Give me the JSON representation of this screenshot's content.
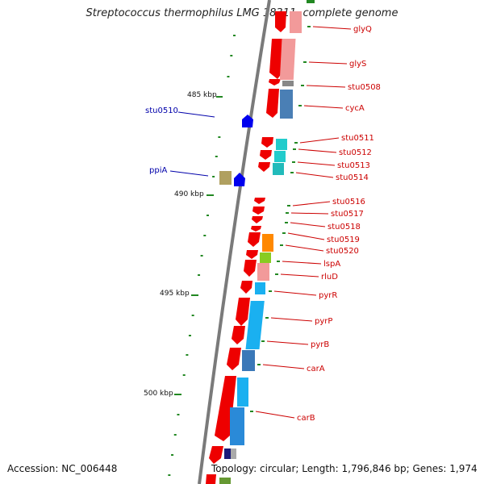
{
  "title": "Streptococcus thermophilus LMG 18311, complete genome",
  "footer": {
    "accession": "Accession: NC_006448",
    "topology": "Topology: circular; Length: 1,796,846 bp; Genes: 1,974"
  },
  "colors": {
    "backbone": "#7a7a7a",
    "gene_red": "#ee0000",
    "label_red": "#cc0000",
    "label_blue": "#0000aa",
    "tick_green": "#228822"
  },
  "kbp_markers": [
    "485 kbp",
    "490 kbp",
    "495 kbp",
    "500 kbp"
  ],
  "gene_labels_right": [
    "glyQ",
    "glyS",
    "stu0508",
    "cycA",
    "stu0511",
    "stu0512",
    "stu0513",
    "stu0514",
    "stu0516",
    "stu0517",
    "stu0518",
    "stu0519",
    "stu0520",
    "lspA",
    "rluD",
    "pyrR",
    "pyrP",
    "pyrB",
    "carA",
    "carB"
  ],
  "gene_labels_left": [
    "stu0510",
    "ppiA"
  ]
}
